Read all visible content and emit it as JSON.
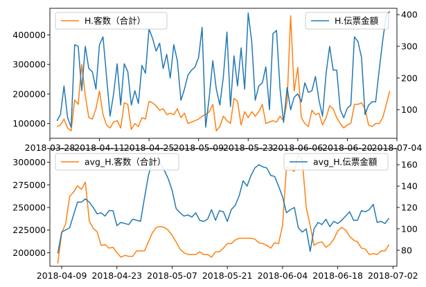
{
  "chart_data": [
    {
      "type": "line",
      "x_ticks": [
        "2018-03-28",
        "2018-04-11",
        "2018-04-25",
        "2018-05-09",
        "2018-05-23",
        "2018-06-06",
        "2018-06-20",
        "2018-07-04"
      ],
      "xlim": [
        "2018-03-28",
        "2018-07-04"
      ],
      "ylim_left": [
        50000,
        490000
      ],
      "yticks_left": [
        "100000",
        "200000",
        "300000",
        "400000"
      ],
      "ylim_right": [
        10,
        420
      ],
      "yticks_right": [
        "100",
        "200",
        "300",
        "400"
      ],
      "series": [
        {
          "name": "H.客数（合計）",
          "axis": "left",
          "color": "#ff7f0e",
          "x": [
            "2018-03-30",
            "2018-03-31",
            "2018-04-01",
            "2018-04-02",
            "2018-04-03",
            "2018-04-04",
            "2018-04-05",
            "2018-04-06",
            "2018-04-07",
            "2018-04-08",
            "2018-04-09",
            "2018-04-10",
            "2018-04-11",
            "2018-04-12",
            "2018-04-13",
            "2018-04-14",
            "2018-04-15",
            "2018-04-16",
            "2018-04-17",
            "2018-04-18",
            "2018-04-19",
            "2018-04-20",
            "2018-04-21",
            "2018-04-22",
            "2018-04-23",
            "2018-04-24",
            "2018-04-25",
            "2018-04-26",
            "2018-04-27",
            "2018-04-28",
            "2018-04-29",
            "2018-04-30",
            "2018-05-01",
            "2018-05-02",
            "2018-05-03",
            "2018-05-04",
            "2018-05-05",
            "2018-05-06",
            "2018-05-07",
            "2018-05-08",
            "2018-05-09",
            "2018-05-10",
            "2018-05-11",
            "2018-05-12",
            "2018-05-13",
            "2018-05-14",
            "2018-05-15",
            "2018-05-16",
            "2018-05-17",
            "2018-05-18",
            "2018-05-19",
            "2018-05-20",
            "2018-05-21",
            "2018-05-22",
            "2018-05-23",
            "2018-05-24",
            "2018-05-25",
            "2018-05-26",
            "2018-05-27",
            "2018-05-28",
            "2018-05-29",
            "2018-05-30",
            "2018-05-31",
            "2018-06-01",
            "2018-06-02",
            "2018-06-03",
            "2018-06-04",
            "2018-06-05",
            "2018-06-06",
            "2018-06-07",
            "2018-06-08",
            "2018-06-09",
            "2018-06-10",
            "2018-06-11",
            "2018-06-12",
            "2018-06-13",
            "2018-06-14",
            "2018-06-15",
            "2018-06-16",
            "2018-06-17",
            "2018-06-18",
            "2018-06-19",
            "2018-06-20",
            "2018-06-21",
            "2018-06-22",
            "2018-06-23",
            "2018-06-24",
            "2018-06-25",
            "2018-06-26",
            "2018-06-27",
            "2018-06-28",
            "2018-06-29",
            "2018-06-30",
            "2018-07-01",
            "2018-07-02"
          ],
          "y": [
            90000,
            95000,
            115000,
            85000,
            75000,
            180000,
            165000,
            300000,
            195000,
            120000,
            115000,
            150000,
            210000,
            130000,
            95000,
            85000,
            105000,
            110000,
            85000,
            170000,
            165000,
            80000,
            100000,
            90000,
            120000,
            115000,
            175000,
            170000,
            160000,
            145000,
            150000,
            130000,
            135000,
            130000,
            150000,
            120000,
            135000,
            100000,
            105000,
            110000,
            115000,
            125000,
            130000,
            140000,
            165000,
            75000,
            90000,
            125000,
            110000,
            100000,
            185000,
            175000,
            95000,
            140000,
            120000,
            140000,
            125000,
            140000,
            165000,
            100000,
            105000,
            110000,
            105000,
            125000,
            110000,
            175000,
            465000,
            210000,
            290000,
            120000,
            100000,
            90000,
            145000,
            130000,
            135000,
            95000,
            120000,
            160000,
            150000,
            120000,
            100000,
            85000,
            95000,
            100000,
            165000,
            165000,
            170000,
            150000,
            95000,
            90000,
            100000,
            100000,
            120000,
            165000,
            210000
          ]
        },
        {
          "name": "H.伝票金額",
          "axis": "right",
          "color": "#1f77b4",
          "x": [
            "2018-03-30",
            "2018-03-31",
            "2018-04-01",
            "2018-04-02",
            "2018-04-03",
            "2018-04-04",
            "2018-04-05",
            "2018-04-06",
            "2018-04-07",
            "2018-04-08",
            "2018-04-09",
            "2018-04-10",
            "2018-04-11",
            "2018-04-12",
            "2018-04-13",
            "2018-04-14",
            "2018-04-15",
            "2018-04-16",
            "2018-04-17",
            "2018-04-18",
            "2018-04-19",
            "2018-04-20",
            "2018-04-21",
            "2018-04-22",
            "2018-04-23",
            "2018-04-24",
            "2018-04-25",
            "2018-04-26",
            "2018-04-27",
            "2018-04-28",
            "2018-04-29",
            "2018-04-30",
            "2018-05-01",
            "2018-05-02",
            "2018-05-03",
            "2018-05-04",
            "2018-05-05",
            "2018-05-06",
            "2018-05-07",
            "2018-05-08",
            "2018-05-09",
            "2018-05-10",
            "2018-05-11",
            "2018-05-12",
            "2018-05-13",
            "2018-05-14",
            "2018-05-15",
            "2018-05-16",
            "2018-05-17",
            "2018-05-18",
            "2018-05-19",
            "2018-05-20",
            "2018-05-21",
            "2018-05-22",
            "2018-05-23",
            "2018-05-24",
            "2018-05-25",
            "2018-05-26",
            "2018-05-27",
            "2018-05-28",
            "2018-05-29",
            "2018-05-30",
            "2018-05-31",
            "2018-06-01",
            "2018-06-02",
            "2018-06-03",
            "2018-06-04",
            "2018-06-05",
            "2018-06-06",
            "2018-06-07",
            "2018-06-08",
            "2018-06-09",
            "2018-06-10",
            "2018-06-11",
            "2018-06-12",
            "2018-06-13",
            "2018-06-14",
            "2018-06-15",
            "2018-06-16",
            "2018-06-17",
            "2018-06-18",
            "2018-06-19",
            "2018-06-20",
            "2018-06-21",
            "2018-06-22",
            "2018-06-23",
            "2018-06-24",
            "2018-06-25",
            "2018-06-26",
            "2018-06-27",
            "2018-06-28",
            "2018-06-29",
            "2018-06-30",
            "2018-07-01",
            "2018-07-02"
          ],
          "y": [
            65,
            85,
            175,
            75,
            45,
            305,
            300,
            160,
            300,
            230,
            220,
            165,
            305,
            330,
            205,
            80,
            150,
            245,
            115,
            245,
            220,
            115,
            160,
            120,
            240,
            215,
            355,
            325,
            285,
            310,
            230,
            275,
            200,
            305,
            255,
            130,
            165,
            210,
            225,
            235,
            265,
            360,
            45,
            140,
            255,
            165,
            115,
            205,
            345,
            110,
            270,
            175,
            295,
            165,
            405,
            315,
            130,
            175,
            185,
            235,
            100,
            340,
            350,
            165,
            60,
            170,
            100,
            140,
            150,
            125,
            185,
            155,
            160,
            205,
            130,
            80,
            215,
            300,
            225,
            225,
            100,
            75,
            105,
            115,
            330,
            315,
            265,
            85,
            115,
            125,
            125,
            225,
            320,
            400,
            410
          ]
        }
      ]
    },
    {
      "type": "line",
      "x_ticks": [
        "2018-04-09",
        "2018-04-23",
        "2018-05-07",
        "2018-05-21",
        "2018-06-04",
        "2018-06-18",
        "2018-07-02"
      ],
      "xlim": [
        "2018-04-06",
        "2018-07-03"
      ],
      "ylim_left": [
        185000,
        315000
      ],
      "yticks_left": [
        "200000",
        "225000",
        "250000",
        "275000",
        "300000"
      ],
      "ylim_right": [
        65,
        175
      ],
      "yticks_right": [
        "80",
        "100",
        "120",
        "140",
        "160"
      ],
      "series": [
        {
          "name": "avg_H.客数（合計）",
          "axis": "left",
          "color": "#ff7f0e",
          "x": [
            "2018-04-08",
            "2018-04-09",
            "2018-04-10",
            "2018-04-11",
            "2018-04-12",
            "2018-04-13",
            "2018-04-14",
            "2018-04-15",
            "2018-04-16",
            "2018-04-17",
            "2018-04-18",
            "2018-04-19",
            "2018-04-20",
            "2018-04-21",
            "2018-04-22",
            "2018-04-23",
            "2018-04-24",
            "2018-04-25",
            "2018-04-26",
            "2018-04-27",
            "2018-04-28",
            "2018-04-29",
            "2018-04-30",
            "2018-05-01",
            "2018-05-02",
            "2018-05-03",
            "2018-05-04",
            "2018-05-05",
            "2018-05-06",
            "2018-05-07",
            "2018-05-08",
            "2018-05-09",
            "2018-05-10",
            "2018-05-11",
            "2018-05-12",
            "2018-05-13",
            "2018-05-14",
            "2018-05-15",
            "2018-05-16",
            "2018-05-17",
            "2018-05-18",
            "2018-05-19",
            "2018-05-20",
            "2018-05-21",
            "2018-05-22",
            "2018-05-23",
            "2018-05-24",
            "2018-05-25",
            "2018-05-26",
            "2018-05-27",
            "2018-05-28",
            "2018-05-29",
            "2018-05-30",
            "2018-05-31",
            "2018-06-01",
            "2018-06-02",
            "2018-06-03",
            "2018-06-04",
            "2018-06-05",
            "2018-06-06",
            "2018-06-07",
            "2018-06-08",
            "2018-06-09",
            "2018-06-10",
            "2018-06-11",
            "2018-06-12",
            "2018-06-13",
            "2018-06-14",
            "2018-06-15",
            "2018-06-16",
            "2018-06-17",
            "2018-06-18",
            "2018-06-19",
            "2018-06-20",
            "2018-06-21",
            "2018-06-22",
            "2018-06-23",
            "2018-06-24",
            "2018-06-25",
            "2018-06-26",
            "2018-06-27",
            "2018-06-28",
            "2018-06-29",
            "2018-06-30",
            "2018-07-01"
          ],
          "y": [
            188000,
            222000,
            232000,
            262000,
            267000,
            274000,
            270000,
            278000,
            235000,
            227000,
            223000,
            208000,
            209000,
            205000,
            206000,
            200000,
            195000,
            197000,
            196000,
            196000,
            202000,
            202000,
            202000,
            212000,
            222000,
            228000,
            229000,
            228000,
            225000,
            219000,
            212000,
            204000,
            200000,
            198000,
            198000,
            198000,
            201000,
            198000,
            198000,
            195000,
            201000,
            201000,
            205000,
            210000,
            210000,
            214000,
            216000,
            216000,
            216000,
            216000,
            215000,
            211000,
            210000,
            208000,
            205000,
            211000,
            210000,
            230000,
            295000,
            292000,
            290000,
            308000,
            302000,
            250000,
            230000,
            208000,
            211000,
            212000,
            206000,
            209000,
            215000,
            224000,
            228000,
            225000,
            218000,
            214000,
            212000,
            205000,
            204000,
            198000,
            199000,
            198000,
            202000,
            202000,
            209000
          ]
        },
        {
          "name": "avg_H.伝票金額",
          "axis": "right",
          "color": "#1f77b4",
          "x": [
            "2018-04-08",
            "2018-04-09",
            "2018-04-10",
            "2018-04-11",
            "2018-04-12",
            "2018-04-13",
            "2018-04-14",
            "2018-04-15",
            "2018-04-16",
            "2018-04-17",
            "2018-04-18",
            "2018-04-19",
            "2018-04-20",
            "2018-04-21",
            "2018-04-22",
            "2018-04-23",
            "2018-04-24",
            "2018-04-25",
            "2018-04-26",
            "2018-04-27",
            "2018-04-28",
            "2018-04-29",
            "2018-04-30",
            "2018-05-01",
            "2018-05-02",
            "2018-05-03",
            "2018-05-04",
            "2018-05-05",
            "2018-05-06",
            "2018-05-07",
            "2018-05-08",
            "2018-05-09",
            "2018-05-10",
            "2018-05-11",
            "2018-05-12",
            "2018-05-13",
            "2018-05-14",
            "2018-05-15",
            "2018-05-16",
            "2018-05-17",
            "2018-05-18",
            "2018-05-19",
            "2018-05-20",
            "2018-05-21",
            "2018-05-22",
            "2018-05-23",
            "2018-05-24",
            "2018-05-25",
            "2018-05-26",
            "2018-05-27",
            "2018-05-28",
            "2018-05-29",
            "2018-05-30",
            "2018-05-31",
            "2018-06-01",
            "2018-06-02",
            "2018-06-03",
            "2018-06-04",
            "2018-06-05",
            "2018-06-06",
            "2018-06-07",
            "2018-06-08",
            "2018-06-09",
            "2018-06-10",
            "2018-06-11",
            "2018-06-12",
            "2018-06-13",
            "2018-06-14",
            "2018-06-15",
            "2018-06-16",
            "2018-06-17",
            "2018-06-18",
            "2018-06-19",
            "2018-06-20",
            "2018-06-21",
            "2018-06-22",
            "2018-06-23",
            "2018-06-24",
            "2018-06-25",
            "2018-06-26",
            "2018-06-27",
            "2018-06-28",
            "2018-06-29",
            "2018-06-30",
            "2018-07-01"
          ],
          "y": [
            77,
            97,
            99,
            101,
            113,
            125,
            125,
            128,
            125,
            120,
            114,
            115,
            112,
            117,
            117,
            103,
            106,
            105,
            104,
            109,
            108,
            107,
            129,
            150,
            164,
            165,
            161,
            155,
            147,
            136,
            119,
            115,
            112,
            113,
            111,
            115,
            108,
            107,
            109,
            118,
            108,
            117,
            116,
            107,
            118,
            122,
            131,
            145,
            140,
            150,
            157,
            160,
            158,
            157,
            150,
            149,
            140,
            130,
            115,
            118,
            120,
            101,
            97,
            100,
            79,
            100,
            106,
            104,
            109,
            102,
            107,
            105,
            108,
            112,
            116,
            108,
            108,
            117,
            116,
            118,
            123,
            106,
            107,
            105,
            110
          ]
        }
      ]
    }
  ]
}
